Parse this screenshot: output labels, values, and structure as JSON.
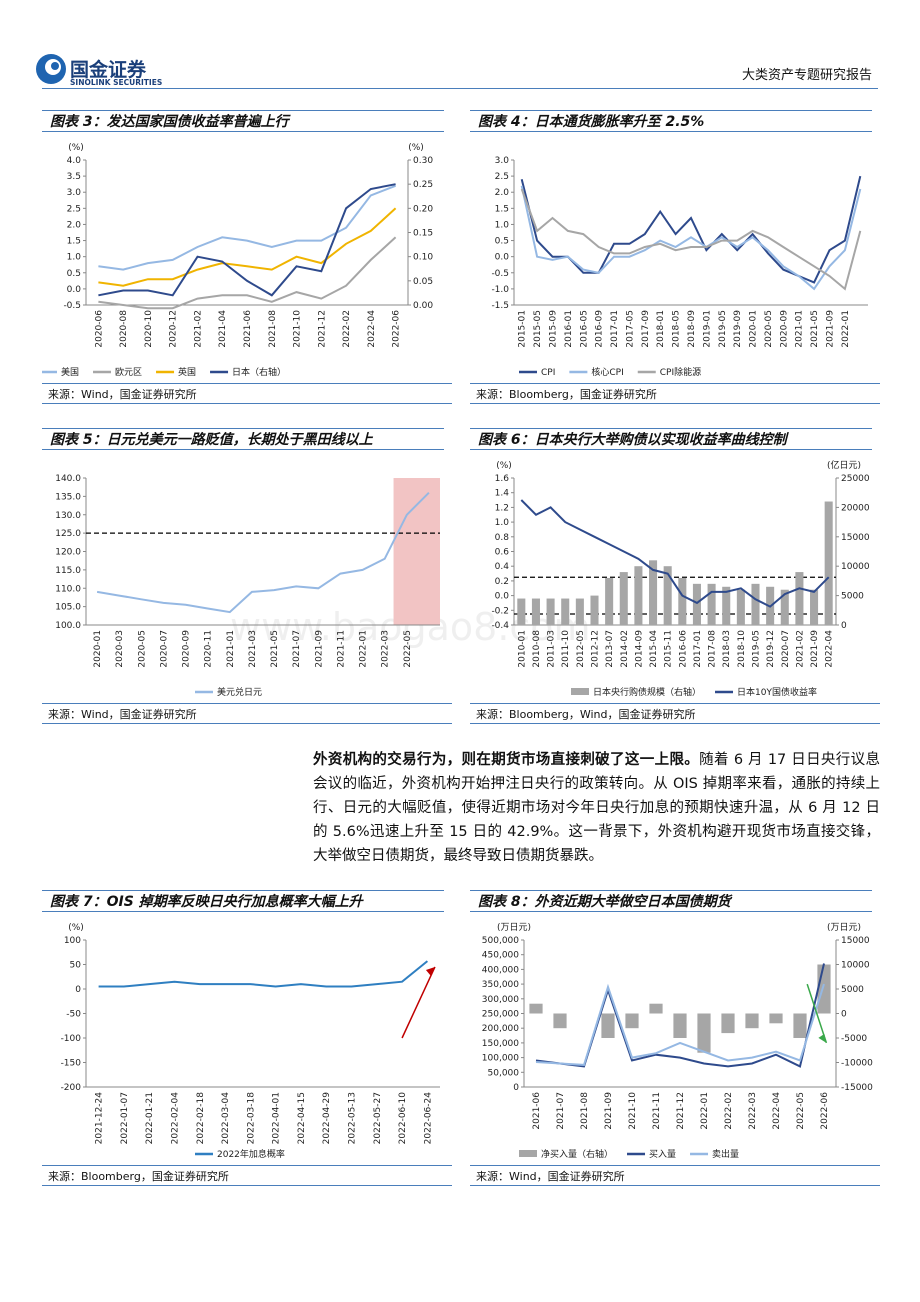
{
  "header": {
    "logo_cn": "国金证券",
    "logo_en": "SINOLINK SECURITIES",
    "report_type": "大类资产专题研究报告"
  },
  "watermark": "www.baogao8.com",
  "figures": [
    {
      "title": "图表 3：发达国家国债收益率普遍上行",
      "source": "来源：Wind，国金证券研究所",
      "chart_data": {
        "type": "line",
        "yunit": "(%)",
        "y2unit": "(%)",
        "categories": [
          "2020-06",
          "2020-08",
          "2020-10",
          "2020-12",
          "2021-02",
          "2021-04",
          "2021-06",
          "2021-08",
          "2021-10",
          "2021-12",
          "2022-02",
          "2022-04",
          "2022-06"
        ],
        "ylim": [
          -0.5,
          4
        ],
        "yticks": [
          -0.5,
          {
            "value": 0,
            "label": "0.0"
          },
          0.5,
          {
            "value": 1,
            "label": "1.0"
          },
          1.5,
          {
            "value": 2,
            "label": "2.0"
          },
          2.5,
          {
            "value": 3,
            "label": "3.0"
          },
          3.5,
          {
            "value": 4,
            "label": "4.0"
          }
        ],
        "y2lim": [
          0,
          0.3
        ],
        "y2ticks": [
          {
            "value": 0,
            "label": "0.00"
          },
          {
            "value": 0.05,
            "label": "0.05"
          },
          {
            "value": 0.1,
            "label": "0.10"
          },
          {
            "value": 0.15,
            "label": "0.15"
          },
          {
            "value": 0.2,
            "label": "0.20"
          },
          {
            "value": 0.25,
            "label": "0.25"
          },
          {
            "value": 0.3,
            "label": "0.30"
          }
        ],
        "series": [
          {
            "name": "美国",
            "color": "#95b8e3",
            "values": [
              0.7,
              0.6,
              0.8,
              0.9,
              1.3,
              1.6,
              1.5,
              1.3,
              1.5,
              1.5,
              1.9,
              2.9,
              3.2
            ]
          },
          {
            "name": "欧元区",
            "color": "#a6a6a6",
            "values": [
              -0.4,
              -0.5,
              -0.6,
              -0.6,
              -0.3,
              -0.2,
              -0.2,
              -0.4,
              -0.1,
              -0.3,
              0.1,
              0.9,
              1.6
            ]
          },
          {
            "name": "英国",
            "color": "#f0b400",
            "values": [
              0.2,
              0.1,
              0.3,
              0.3,
              0.6,
              0.8,
              0.7,
              0.6,
              1.0,
              0.8,
              1.4,
              1.8,
              2.5
            ]
          },
          {
            "name": "日本（右轴）",
            "color": "#2e4a8c",
            "axis": "y2",
            "values": [
              0.02,
              0.03,
              0.03,
              0.02,
              0.1,
              0.09,
              0.05,
              0.02,
              0.08,
              0.07,
              0.2,
              0.24,
              0.25
            ]
          }
        ]
      }
    },
    {
      "title": "图表 4：日本通货膨胀率升至 2.5%",
      "source": "来源：Bloomberg，国金证券研究所",
      "chart_data": {
        "type": "line",
        "categories": [
          "2015-01",
          "2015-05",
          "2015-09",
          "2016-01",
          "2016-05",
          "2016-09",
          "2017-01",
          "2017-05",
          "2017-09",
          "2018-01",
          "2018-05",
          "2018-09",
          "2019-01",
          "2019-05",
          "2019-09",
          "2020-01",
          "2020-05",
          "2020-09",
          "2021-01",
          "2021-05",
          "2021-09",
          "2022-01",
          null
        ],
        "ylim": [
          -1.5,
          3
        ],
        "yticks": [
          -1.5,
          {
            "value": -1,
            "label": "-1.0"
          },
          -0.5,
          {
            "value": 0,
            "label": "0.0"
          },
          0.5,
          {
            "value": 1,
            "label": "1.0"
          },
          1.5,
          {
            "value": 2,
            "label": "2.0"
          },
          2.5,
          {
            "value": 3,
            "label": "3.0"
          }
        ],
        "series": [
          {
            "name": "CPI",
            "color": "#2e4a8c",
            "values": [
              2.4,
              0.5,
              0.0,
              0.0,
              -0.5,
              -0.5,
              0.4,
              0.4,
              0.7,
              1.4,
              0.7,
              1.2,
              0.2,
              0.7,
              0.2,
              0.7,
              0.1,
              -0.4,
              -0.6,
              -0.8,
              0.2,
              0.5,
              2.5
            ]
          },
          {
            "name": "核心CPI",
            "color": "#95b8e3",
            "values": [
              2.2,
              0.0,
              -0.1,
              0.0,
              -0.4,
              -0.5,
              0.0,
              0.0,
              0.2,
              0.5,
              0.3,
              0.6,
              0.3,
              0.6,
              0.3,
              0.6,
              0.2,
              -0.3,
              -0.6,
              -1.0,
              -0.3,
              0.2,
              2.1
            ]
          },
          {
            "name": "CPI除能源",
            "color": "#a6a6a6",
            "values": [
              2.1,
              0.8,
              1.2,
              0.8,
              0.7,
              0.3,
              0.1,
              0.1,
              0.3,
              0.4,
              0.2,
              0.3,
              0.3,
              0.5,
              0.5,
              0.8,
              0.6,
              0.3,
              0.0,
              -0.3,
              -0.6,
              -1.0,
              0.8
            ]
          }
        ]
      }
    },
    {
      "title": "图表 5：日元兑美元一路贬值，长期处于黑田线以上",
      "source": "来源：Wind，国金证券研究所",
      "chart_data": {
        "type": "line",
        "categories": [
          "2020-01",
          "2020-03",
          "2020-05",
          "2020-07",
          "2020-09",
          "2020-11",
          "2021-01",
          "2021-03",
          "2021-05",
          "2021-07",
          "2021-09",
          "2021-11",
          "2022-01",
          "2022-03",
          "2022-05",
          null
        ],
        "ylim": [
          100,
          140
        ],
        "yticks": [
          {
            "value": 100,
            "label": "100.0"
          },
          {
            "value": 105,
            "label": "105.0"
          },
          {
            "value": 110,
            "label": "110.0"
          },
          {
            "value": 115,
            "label": "115.0"
          },
          {
            "value": 120,
            "label": "120.0"
          },
          {
            "value": 125,
            "label": "125.0"
          },
          {
            "value": 130,
            "label": "130.0"
          },
          {
            "value": 135,
            "label": "135.0"
          },
          {
            "value": 140,
            "label": "140.0"
          }
        ],
        "reference_lines": [
          125
        ],
        "series": [
          {
            "name": "美元兑日元",
            "color": "#95b8e3",
            "values": [
              109,
              108,
              107,
              106,
              105.5,
              104.5,
              103.5,
              109,
              109.5,
              110.5,
              110,
              114,
              115,
              118,
              130,
              136
            ]
          }
        ]
      }
    },
    {
      "title": "图表 6：日本央行大举购债以实现收益率曲线控制",
      "source": "来源：Bloomberg，Wind，国金证券研究所",
      "chart_data": {
        "type": "combo",
        "yunit": "(%)",
        "y2unit": "(亿日元)",
        "categories": [
          "2010-01",
          "2010-08",
          "2011-03",
          "2011-10",
          "2012-05",
          "2012-12",
          "2013-07",
          "2014-02",
          "2014-09",
          "2015-04",
          "2015-11",
          "2016-06",
          "2017-01",
          "2017-08",
          "2018-03",
          "2018-10",
          "2019-05",
          "2019-12",
          "2020-07",
          "2021-02",
          "2021-09",
          "2022-04"
        ],
        "ylim": [
          -0.4,
          1.6
        ],
        "yticks": [
          -0.4,
          -0.2,
          {
            "value": 0,
            "label": "0.0"
          },
          0.2,
          0.4,
          0.6,
          0.8,
          {
            "value": 1,
            "label": "1.0"
          },
          1.2,
          1.4,
          1.6
        ],
        "y2lim": [
          0,
          25000
        ],
        "y2ticks": [
          0,
          5000,
          10000,
          15000,
          20000,
          25000
        ],
        "reference_lines": [
          0.25,
          -0.25
        ],
        "series": [
          {
            "name": "日本央行购债规模（右轴）",
            "type": "bar",
            "color": "#a6a6a6",
            "axis": "y2",
            "values": [
              4500,
              4500,
              4500,
              4500,
              4500,
              5000,
              8000,
              9000,
              10000,
              11000,
              10000,
              8000,
              7000,
              7000,
              6500,
              6000,
              7000,
              6500,
              6000,
              9000,
              6000,
              21000
            ]
          },
          {
            "name": "日本10Y国债收益率",
            "type": "line",
            "color": "#2e4a8c",
            "values": [
              1.3,
              1.1,
              1.2,
              1.0,
              0.9,
              0.8,
              0.7,
              0.6,
              0.5,
              0.35,
              0.3,
              0.0,
              -0.1,
              0.05,
              0.05,
              0.1,
              -0.05,
              -0.15,
              0.02,
              0.1,
              0.05,
              0.25
            ]
          }
        ]
      }
    },
    {
      "title": "图表 7：OIS 掉期率反映日央行加息概率大幅上升",
      "source": "来源：Bloomberg，国金证券研究所",
      "chart_data": {
        "type": "line",
        "yunit": "(%)",
        "categories": [
          "2021-12-24",
          "2022-01-07",
          "2022-01-21",
          "2022-02-04",
          "2022-02-18",
          "2022-03-04",
          "2022-03-18",
          "2022-04-01",
          "2022-04-15",
          "2022-04-29",
          "2022-05-13",
          "2022-05-27",
          "2022-06-10",
          "2022-06-24"
        ],
        "ylim": [
          -200,
          100
        ],
        "yticks": [
          -200,
          -150,
          -100,
          -50,
          0,
          50,
          100
        ],
        "series": [
          {
            "name": "2022年加息概率",
            "color": "#2f7fc1",
            "values": [
              5,
              5,
              10,
              15,
              10,
              10,
              10,
              5,
              10,
              5,
              5,
              10,
              15,
              57
            ]
          }
        ]
      }
    },
    {
      "title": "图表 8：外资近期大举做空日本国债期货",
      "source": "来源：Wind，国金证券研究所",
      "chart_data": {
        "type": "combo",
        "yunit": "(万日元)",
        "y2unit": "(万日元)",
        "categories": [
          "2021-06",
          "2021-07",
          "2021-08",
          "2021-09",
          "2021-10",
          "2021-11",
          "2021-12",
          "2022-01",
          "2022-02",
          "2022-03",
          "2022-04",
          "2022-05",
          "2022-06"
        ],
        "ylim": [
          0,
          500000
        ],
        "yticks": [
          0,
          {
            "value": 50000,
            "label": "50,000"
          },
          {
            "value": 100000,
            "label": "100,000"
          },
          {
            "value": 150000,
            "label": "150,000"
          },
          {
            "value": 200000,
            "label": "200,000"
          },
          {
            "value": 250000,
            "label": "250,000"
          },
          {
            "value": 300000,
            "label": "300,000"
          },
          {
            "value": 350000,
            "label": "350,000"
          },
          {
            "value": 400000,
            "label": "400,000"
          },
          {
            "value": 450000,
            "label": "450,000"
          },
          {
            "value": 500000,
            "label": "500,000"
          }
        ],
        "y2lim": [
          -15000,
          15000
        ],
        "y2ticks": [
          -15000,
          -10000,
          -5000,
          0,
          5000,
          10000,
          15000
        ],
        "series": [
          {
            "name": "净买入量（右轴）",
            "type": "bar",
            "color": "#a6a6a6",
            "axis": "y2",
            "values": [
              2000,
              -3000,
              0,
              -5000,
              -3000,
              2000,
              -5000,
              -8000,
              -4000,
              -3000,
              -2000,
              -5000,
              10000
            ]
          },
          {
            "name": "买入量",
            "type": "line",
            "color": "#2e4a8c",
            "values": [
              90000,
              80000,
              70000,
              330000,
              90000,
              110000,
              100000,
              80000,
              70000,
              80000,
              110000,
              70000,
              420000
            ]
          },
          {
            "name": "卖出量",
            "type": "line",
            "color": "#95b8e3",
            "values": [
              85000,
              80000,
              75000,
              340000,
              100000,
              115000,
              150000,
              120000,
              90000,
              100000,
              120000,
              90000,
              350000
            ]
          }
        ]
      }
    }
  ],
  "paragraph": {
    "bold": "外资机构的交易行为，则在期货市场直接刺破了这一上限。",
    "text": "随着 6 月 17 日日央行议息会议的临近，外资机构开始押注日央行的政策转向。从 OIS 掉期率来看，通胀的持续上行、日元的大幅贬值，使得近期市场对今年日央行加息的预期快速升温，从 6 月 12 日的 5.6%迅速上升至 15 日的 42.9%。这一背景下，外资机构避开现货市场直接交锋，大举做空日债期货，最终导致日债期货暴跌。"
  }
}
